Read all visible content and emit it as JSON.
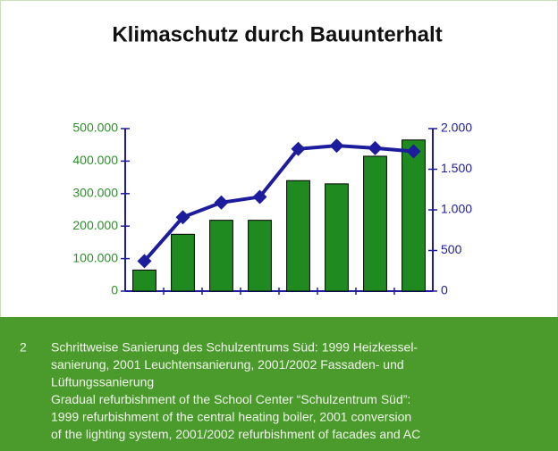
{
  "chart_data": {
    "type": "bar_line",
    "title": "Klimaschutz durch Bauunterhalt",
    "categories": [
      null,
      null,
      null,
      null,
      null,
      null,
      null,
      null
    ],
    "series": [
      {
        "name": null,
        "type": "bar",
        "color": "#1f8a1f",
        "values": [
          65000,
          175000,
          218000,
          218000,
          340000,
          330000,
          415000,
          465000
        ]
      },
      {
        "name": null,
        "type": "line",
        "axis": "y2",
        "color": "#1c1c9c",
        "values": [
          370,
          910,
          1090,
          1160,
          1750,
          1790,
          1760,
          1720
        ]
      }
    ],
    "ylim": [
      0,
      500000
    ],
    "yticks": [
      0,
      {
        "value": 100000,
        "label": "100.000"
      },
      {
        "value": 200000,
        "label": "200.000"
      },
      {
        "value": 300000,
        "label": "300.000"
      },
      {
        "value": 400000,
        "label": "400.000"
      },
      {
        "value": 500000,
        "label": "500.000"
      }
    ],
    "y2lim": [
      0,
      2000
    ],
    "y2ticks": [
      0,
      500,
      {
        "value": 1000,
        "label": "1.000"
      },
      {
        "value": 1500,
        "label": "1.500"
      },
      {
        "value": 2000,
        "label": "2.000"
      }
    ],
    "grid": false
  },
  "caption": {
    "number": "2",
    "lines": [
      "Schrittweise Sanierung des Schulzentrums Süd: 1999 Heizkessel-",
      "sanierung, 2001 Leuchtensanierung, 2001/2002 Fassaden- und",
      "Lüftungssanierung",
      "Gradual refurbishment of the School Center “Schulzentrum Süd”:",
      "1999 refurbishment of the central heating boiler, 2001 conversion",
      "of the lighting system, 2001/2002 refurbishment of facades and AC"
    ]
  }
}
